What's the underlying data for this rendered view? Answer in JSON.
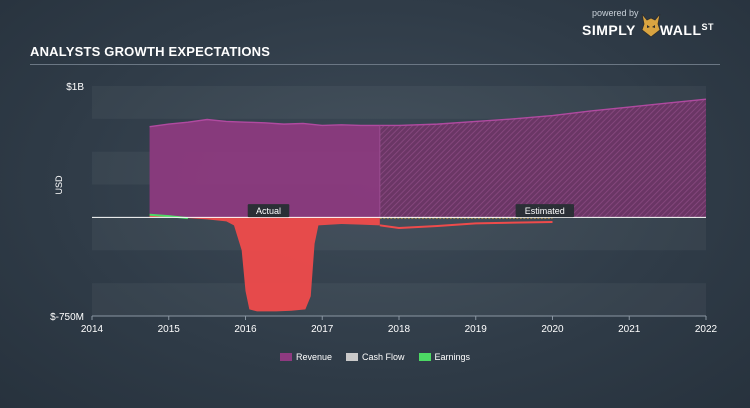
{
  "header": {
    "title": "ANALYSTS GROWTH EXPECTATIONS"
  },
  "brand": {
    "powered": "powered by",
    "simply": "SIMPLY",
    "wall": "WALL",
    "st": "ST"
  },
  "colors": {
    "revenue": "#8e3a80",
    "cashflow": "#c9c9c9",
    "earnings": "#4cd964",
    "earnings_actual": "#ef4b4b",
    "zero_line": "#ffffff"
  },
  "chart_data": {
    "type": "area",
    "title": "ANALYSTS GROWTH EXPECTATIONS",
    "ylabel": "USD",
    "xlim": [
      2014,
      2022
    ],
    "ylim": [
      -750,
      1000
    ],
    "ytick_labels": [
      "$1B",
      "$-750M"
    ],
    "xticks": [
      2014,
      2015,
      2016,
      2017,
      2018,
      2019,
      2020,
      2021,
      2022
    ],
    "divider_x": 2017.75,
    "annotations": [
      {
        "text": "Actual",
        "x": 2016.3,
        "y": 40
      },
      {
        "text": "Estimated",
        "x": 2019.9,
        "y": 40
      }
    ],
    "legend_position": "bottom-center",
    "series": [
      {
        "name": "Revenue",
        "points": [
          [
            2014.75,
            690
          ],
          [
            2015.0,
            710
          ],
          [
            2015.25,
            725
          ],
          [
            2015.5,
            745
          ],
          [
            2015.75,
            730
          ],
          [
            2016.0,
            725
          ],
          [
            2016.25,
            720
          ],
          [
            2016.5,
            710
          ],
          [
            2016.75,
            715
          ],
          [
            2017.0,
            700
          ],
          [
            2017.25,
            705
          ],
          [
            2017.5,
            700
          ],
          [
            2017.75,
            700
          ],
          [
            2018.0,
            700
          ],
          [
            2018.5,
            710
          ],
          [
            2019.0,
            730
          ],
          [
            2019.5,
            750
          ],
          [
            2020.0,
            775
          ],
          [
            2020.5,
            810
          ],
          [
            2021.0,
            840
          ],
          [
            2021.5,
            870
          ],
          [
            2022.0,
            900
          ]
        ]
      },
      {
        "name": "Cash Flow",
        "points": [
          [
            2017.75,
            -5
          ],
          [
            2018.5,
            -5
          ],
          [
            2019.5,
            -5
          ],
          [
            2020.0,
            -5
          ]
        ]
      },
      {
        "name": "Earnings",
        "points": [
          [
            2014.75,
            20
          ],
          [
            2015.0,
            10
          ],
          [
            2015.25,
            -5
          ],
          [
            2015.5,
            -15
          ],
          [
            2015.75,
            -30
          ],
          [
            2015.85,
            -60
          ],
          [
            2015.95,
            -250
          ],
          [
            2016.0,
            -560
          ],
          [
            2016.05,
            -700
          ],
          [
            2016.15,
            -715
          ],
          [
            2016.4,
            -715
          ],
          [
            2016.6,
            -710
          ],
          [
            2016.78,
            -700
          ],
          [
            2016.85,
            -600
          ],
          [
            2016.9,
            -200
          ],
          [
            2016.95,
            -60
          ],
          [
            2017.25,
            -50
          ],
          [
            2017.5,
            -55
          ],
          [
            2017.75,
            -60
          ],
          [
            2018.0,
            -80
          ],
          [
            2018.5,
            -65
          ],
          [
            2019.0,
            -45
          ],
          [
            2019.5,
            -40
          ],
          [
            2020.0,
            -35
          ]
        ]
      }
    ]
  },
  "legend": {
    "items": [
      {
        "label": "Revenue"
      },
      {
        "label": "Cash Flow"
      },
      {
        "label": "Earnings"
      }
    ]
  }
}
